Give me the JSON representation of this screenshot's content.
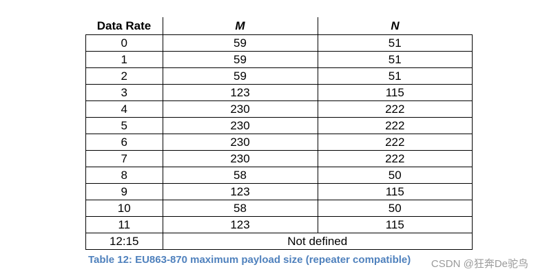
{
  "table": {
    "header": [
      "Data Rate",
      "M",
      "N"
    ],
    "rows": [
      [
        0,
        59,
        51
      ],
      [
        1,
        59,
        51
      ],
      [
        2,
        59,
        51
      ],
      [
        3,
        123,
        115
      ],
      [
        4,
        230,
        222
      ],
      [
        5,
        230,
        222
      ],
      [
        6,
        230,
        222
      ],
      [
        7,
        230,
        222
      ],
      [
        8,
        58,
        50
      ],
      [
        9,
        123,
        115
      ],
      [
        10,
        58,
        50
      ],
      [
        11,
        123,
        115
      ],
      [
        "12:15",
        "Not defined"
      ]
    ]
  },
  "caption": "Table 12: EU863-870 maximum payload size (repeater compatible)",
  "watermark": "CSDN @狂奔De驼鸟"
}
